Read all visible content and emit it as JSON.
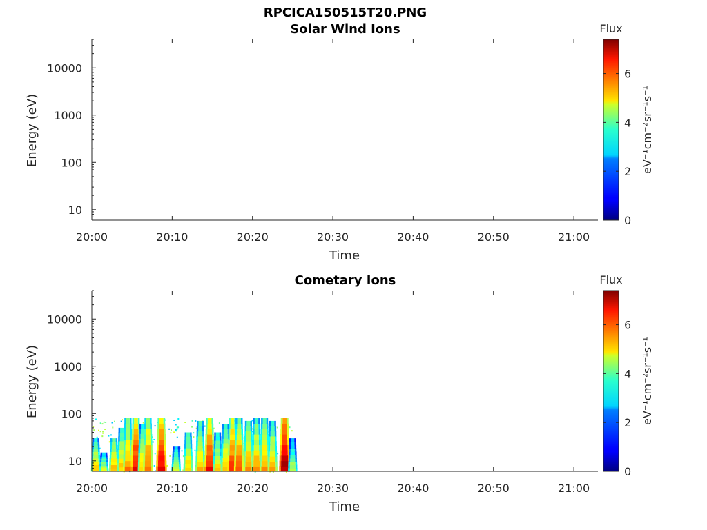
{
  "figure_title": "RPCICA150515T20.PNG",
  "chart_data": [
    {
      "type": "heatmap",
      "title": "Solar Wind Ions",
      "xlabel": "Time",
      "ylabel": "Energy (eV)",
      "y_scale": "log",
      "x_ticks": [
        "20:00",
        "20:10",
        "20:20",
        "20:30",
        "20:40",
        "20:50",
        "21:00"
      ],
      "y_ticks": [
        "10",
        "100",
        "1000",
        "10000"
      ],
      "xlim": [
        "20:00",
        "21:03"
      ],
      "ylim": [
        6,
        40000
      ],
      "colorbar": {
        "title": "Flux",
        "unit": "eV⁻¹cm⁻²sr⁻¹s⁻¹",
        "ticks": [
          "0",
          "2",
          "4",
          "6"
        ],
        "range": [
          0,
          7.4
        ],
        "colormap": "jet"
      },
      "data": []
    },
    {
      "type": "heatmap",
      "title": "Cometary Ions",
      "xlabel": "Time",
      "ylabel": "Energy (eV)",
      "y_scale": "log",
      "x_ticks": [
        "20:00",
        "20:10",
        "20:20",
        "20:30",
        "20:40",
        "20:50",
        "21:00"
      ],
      "y_ticks": [
        "10",
        "100",
        "1000",
        "10000"
      ],
      "xlim": [
        "20:00",
        "21:03"
      ],
      "ylim": [
        6,
        40000
      ],
      "colorbar": {
        "title": "Flux",
        "unit": "eV⁻¹cm⁻²sr⁻¹s⁻¹",
        "ticks": [
          "0",
          "2",
          "4",
          "6"
        ],
        "range": [
          0,
          7.4
        ],
        "colormap": "jet"
      },
      "data_extent": {
        "time_range": [
          "20:00",
          "20:25"
        ],
        "energy_max_eV": 80
      },
      "bursts": [
        {
          "time": "20:00:30",
          "energy_top_eV": 30,
          "flux": 5.0
        },
        {
          "time": "20:01:30",
          "energy_top_eV": 15,
          "flux": 4.5
        },
        {
          "time": "20:02:45",
          "energy_top_eV": 30,
          "flux": 5.3
        },
        {
          "time": "20:03:45",
          "energy_top_eV": 50,
          "flux": 5.0
        },
        {
          "time": "20:04:30",
          "energy_top_eV": 80,
          "flux": 5.5
        },
        {
          "time": "20:05:30",
          "energy_top_eV": 80,
          "flux": 6.6
        },
        {
          "time": "20:06:20",
          "energy_top_eV": 60,
          "flux": 5.0
        },
        {
          "time": "20:07:00",
          "energy_top_eV": 80,
          "flux": 5.8
        },
        {
          "time": "20:08:40",
          "energy_top_eV": 80,
          "flux": 6.8
        },
        {
          "time": "20:10:30",
          "energy_top_eV": 20,
          "flux": 4.5
        },
        {
          "time": "20:12:00",
          "energy_top_eV": 40,
          "flux": 5.0
        },
        {
          "time": "20:13:30",
          "energy_top_eV": 70,
          "flux": 5.2
        },
        {
          "time": "20:14:40",
          "energy_top_eV": 80,
          "flux": 6.5
        },
        {
          "time": "20:15:40",
          "energy_top_eV": 40,
          "flux": 4.8
        },
        {
          "time": "20:16:40",
          "energy_top_eV": 60,
          "flux": 5.2
        },
        {
          "time": "20:17:30",
          "energy_top_eV": 80,
          "flux": 6.2
        },
        {
          "time": "20:18:20",
          "energy_top_eV": 80,
          "flux": 5.8
        },
        {
          "time": "20:19:30",
          "energy_top_eV": 70,
          "flux": 5.5
        },
        {
          "time": "20:20:30",
          "energy_top_eV": 80,
          "flux": 5.3
        },
        {
          "time": "20:21:30",
          "energy_top_eV": 80,
          "flux": 5.4
        },
        {
          "time": "20:22:30",
          "energy_top_eV": 70,
          "flux": 5.2
        },
        {
          "time": "20:24:00",
          "energy_top_eV": 80,
          "flux": 7.2
        },
        {
          "time": "20:25:00",
          "energy_top_eV": 30,
          "flux": 4.2
        }
      ]
    }
  ]
}
